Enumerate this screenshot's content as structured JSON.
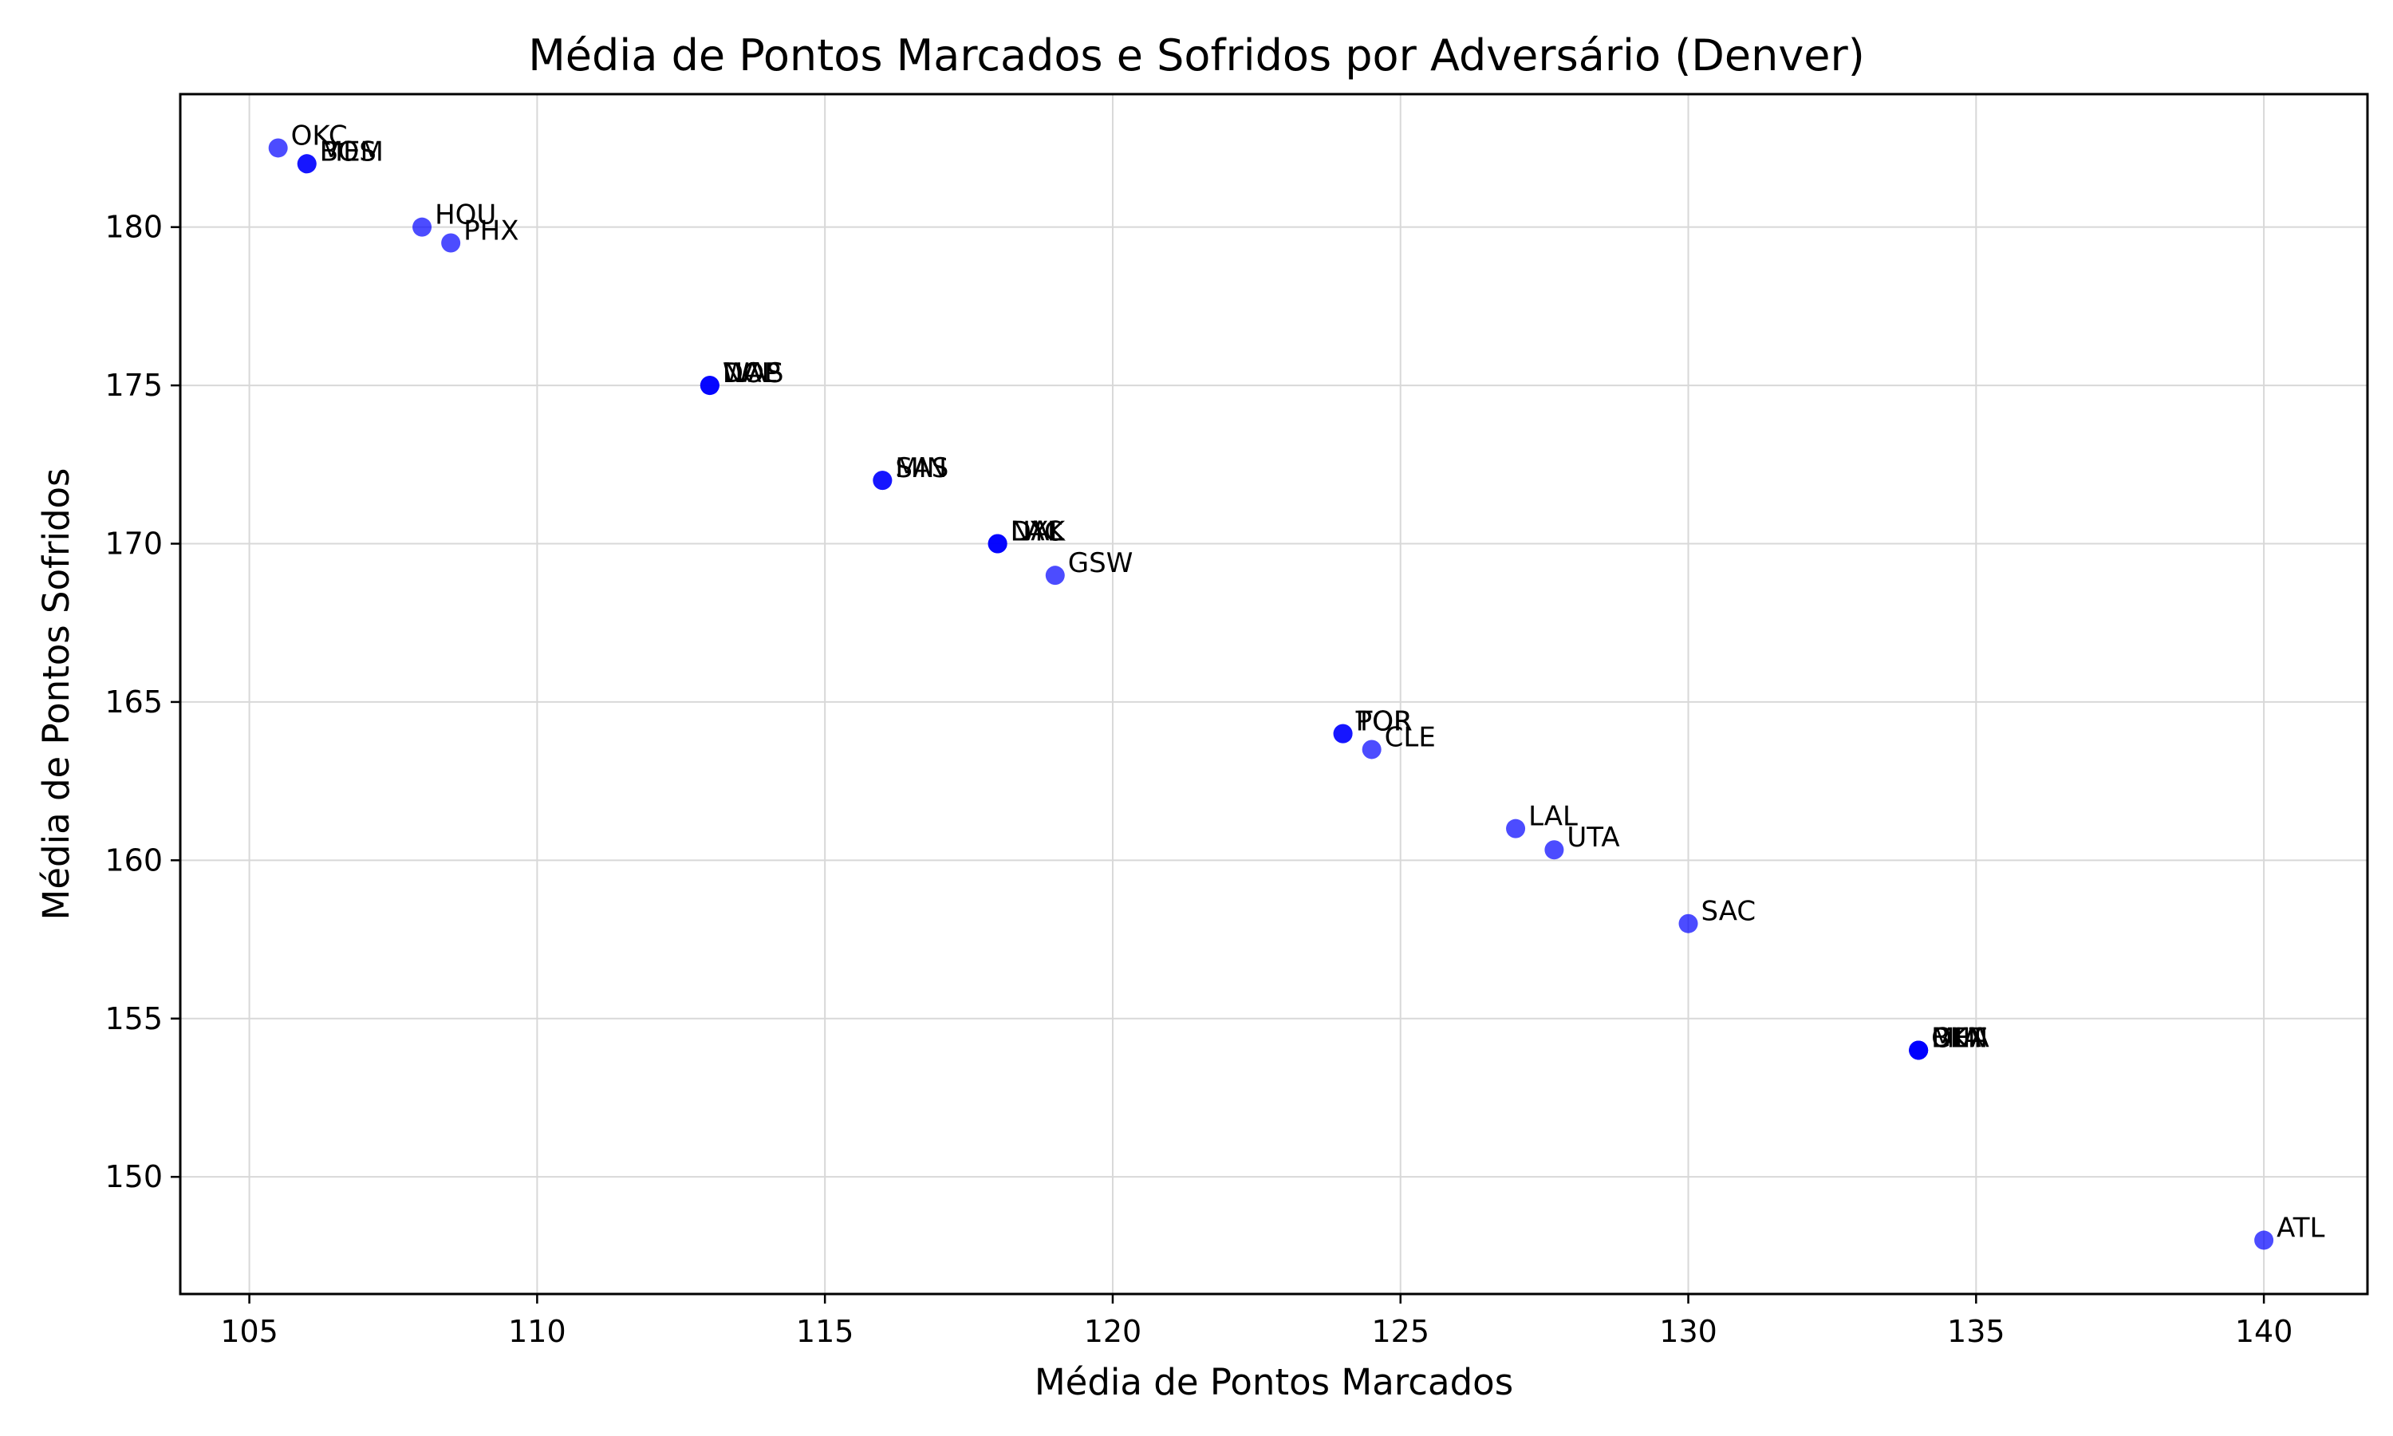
{
  "chart_data": {
    "type": "scatter",
    "title": "Média de Pontos Marcados e Sofridos por Adversário (Denver)",
    "xlabel": "Média de Pontos Marcados",
    "ylabel": "Média de Pontos Sofridos",
    "xlim": [
      103.8,
      141.8
    ],
    "ylim": [
      146.3,
      184.2
    ],
    "xticks": [
      105,
      110,
      115,
      120,
      125,
      130,
      135,
      140
    ],
    "yticks": [
      150,
      155,
      160,
      165,
      170,
      175,
      180
    ],
    "grid": true,
    "marker_color": "#0000ff",
    "marker_alpha": 0.7,
    "points": [
      {
        "label": "OKC",
        "x": 105.5,
        "y": 182.5
      },
      {
        "label": "MEM",
        "x": 106.0,
        "y": 182.0
      },
      {
        "label": "BOS",
        "x": 106.0,
        "y": 182.0
      },
      {
        "label": "HOU",
        "x": 108.0,
        "y": 180.0
      },
      {
        "label": "PHX",
        "x": 108.5,
        "y": 179.5
      },
      {
        "label": "WAS",
        "x": 113.0,
        "y": 175.0
      },
      {
        "label": "NOP",
        "x": 113.0,
        "y": 175.0
      },
      {
        "label": "DAL",
        "x": 113.0,
        "y": 175.0
      },
      {
        "label": "MIN",
        "x": 116.0,
        "y": 172.0
      },
      {
        "label": "SAS",
        "x": 116.0,
        "y": 172.0
      },
      {
        "label": "LAC",
        "x": 118.0,
        "y": 170.0
      },
      {
        "label": "NYK",
        "x": 118.0,
        "y": 170.0
      },
      {
        "label": "DAL",
        "x": 118.0,
        "y": 170.0
      },
      {
        "label": "GSW",
        "x": 119.0,
        "y": 169.0
      },
      {
        "label": "POR",
        "x": 124.0,
        "y": 164.0
      },
      {
        "label": "TOR",
        "x": 124.0,
        "y": 164.0
      },
      {
        "label": "CLE",
        "x": 124.5,
        "y": 163.5
      },
      {
        "label": "LAL",
        "x": 127.0,
        "y": 161.0
      },
      {
        "label": "UTA",
        "x": 127.67,
        "y": 160.33
      },
      {
        "label": "SAC",
        "x": 130.0,
        "y": 158.0
      },
      {
        "label": "MIA",
        "x": 134.0,
        "y": 154.0
      },
      {
        "label": "DET",
        "x": 134.0,
        "y": 154.0
      },
      {
        "label": "BKN",
        "x": 134.0,
        "y": 154.0
      },
      {
        "label": "CHA",
        "x": 134.0,
        "y": 154.0
      },
      {
        "label": "ATL",
        "x": 140.0,
        "y": 148.0
      }
    ]
  }
}
